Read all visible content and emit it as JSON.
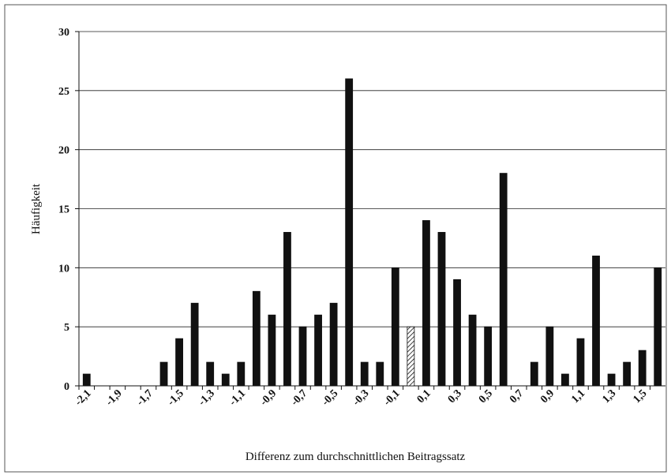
{
  "chart_data": {
    "type": "bar",
    "x_label": "Differenz zum durchschnittlichen Beitragssatz",
    "y_label": "Häufigkeit",
    "categories": [
      "-2,1",
      null,
      "-1,9",
      null,
      "-1,7",
      null,
      "-1,5",
      null,
      "-1,3",
      null,
      "-1,1",
      null,
      "-0,9",
      null,
      "-0,7",
      null,
      "-0,5",
      null,
      "-0,3",
      null,
      "-0,1",
      null,
      "0,1",
      null,
      "0,3",
      null,
      "0,5",
      null,
      "0,7",
      null,
      "0,9",
      null,
      "1,1",
      null,
      "1,3",
      null,
      "1,5",
      null
    ],
    "values": [
      1,
      0,
      0,
      0,
      0,
      2,
      4,
      7,
      2,
      1,
      2,
      8,
      6,
      13,
      5,
      6,
      7,
      26,
      2,
      2,
      10,
      5,
      14,
      13,
      9,
      6,
      5,
      18,
      0,
      2,
      5,
      1,
      4,
      11,
      1,
      2,
      3,
      10
    ],
    "bar_styles": [
      "solid",
      "solid",
      "solid",
      "solid",
      "solid",
      "solid",
      "solid",
      "solid",
      "solid",
      "solid",
      "solid",
      "solid",
      "solid",
      "solid",
      "solid",
      "solid",
      "solid",
      "solid",
      "solid",
      "solid",
      "solid",
      "hatched",
      "solid",
      "solid",
      "solid",
      "solid",
      "solid",
      "solid",
      "solid",
      "solid",
      "solid",
      "solid",
      "solid",
      "solid",
      "solid",
      "solid",
      "solid",
      "solid"
    ],
    "color": "#111111",
    "ylim": [
      0,
      30
    ],
    "yticks": [
      0,
      5,
      10,
      15,
      20,
      25,
      30
    ],
    "grid": true
  }
}
